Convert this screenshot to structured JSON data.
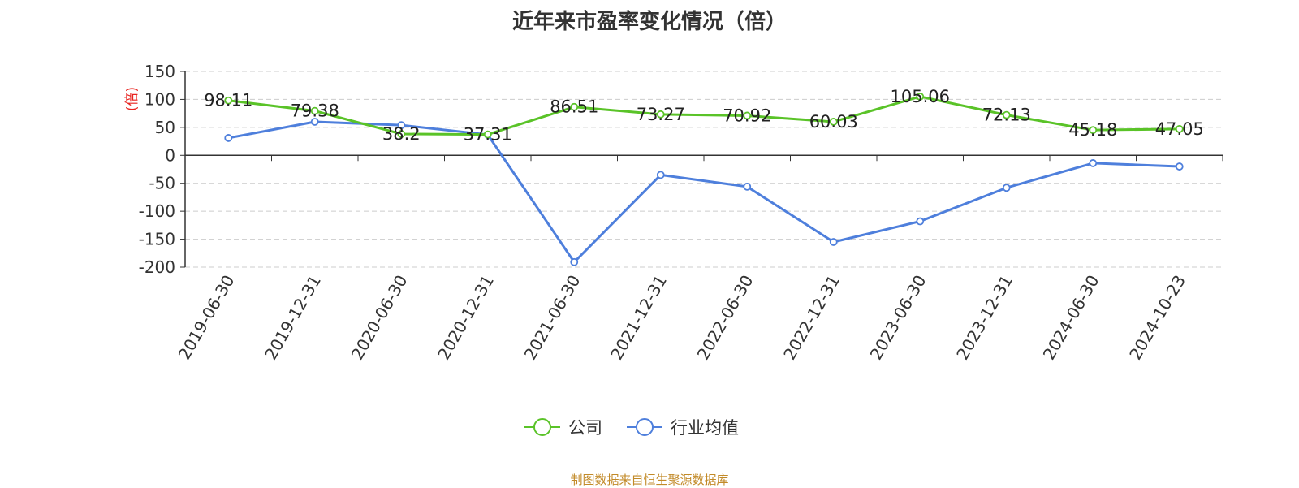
{
  "chart_data": {
    "type": "line",
    "title": "近年来市盈率变化情况（倍）",
    "ylabel": "(倍)",
    "xlabel": "",
    "categories": [
      "2019-06-30",
      "2019-12-31",
      "2020-06-30",
      "2020-12-31",
      "2021-06-30",
      "2021-12-31",
      "2022-06-30",
      "2022-12-31",
      "2023-06-30",
      "2023-12-31",
      "2024-06-30",
      "2024-10-23"
    ],
    "yticks": [
      150,
      100,
      50,
      0,
      -50,
      -100,
      -150,
      -200
    ],
    "ylim": [
      -200,
      150
    ],
    "grid": true,
    "legend_position": "bottom",
    "series": [
      {
        "name": "公司",
        "color": "#5ac328",
        "values": [
          98.11,
          79.38,
          38.2,
          37.31,
          86.51,
          73.27,
          70.92,
          60.03,
          105.06,
          72.13,
          45.18,
          47.05
        ],
        "labels": [
          "98.11",
          "79.38",
          "38.2",
          "37.31",
          "86.51",
          "73.27",
          "70.92",
          "60.03",
          "105.06",
          "72.13",
          "45.18",
          "47.05"
        ]
      },
      {
        "name": "行业均值",
        "color": "#4e7fdc",
        "values": [
          31,
          60,
          54,
          37,
          -191,
          -35,
          -56,
          -155,
          -118,
          -58,
          -14,
          -20
        ]
      }
    ]
  },
  "source_text": "制图数据来自恒生聚源数据库"
}
